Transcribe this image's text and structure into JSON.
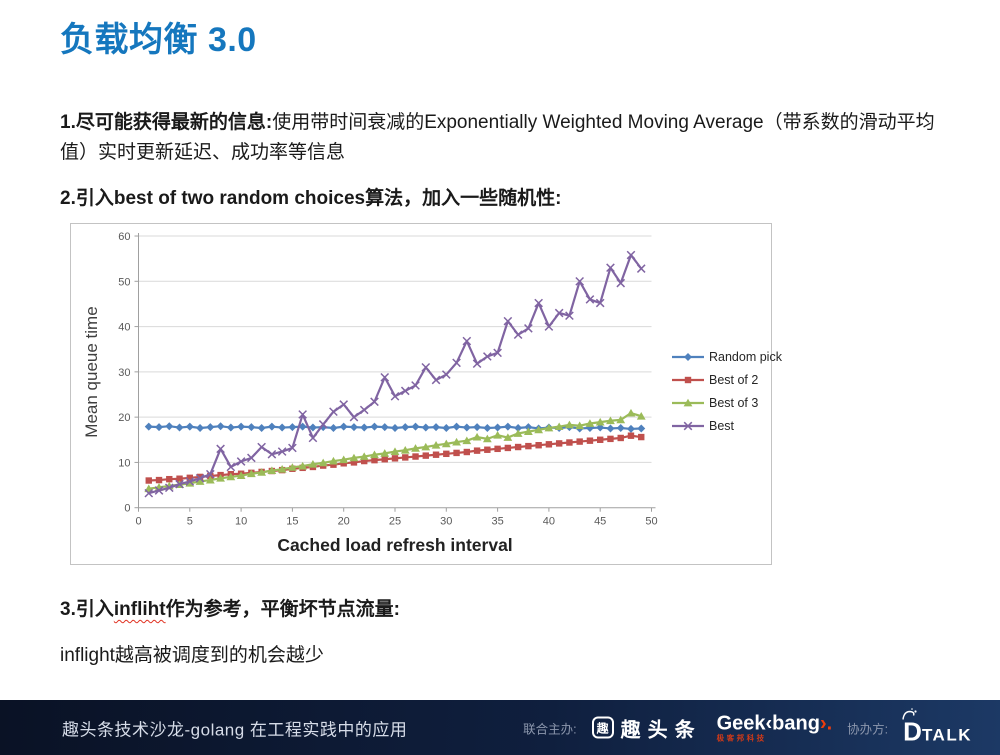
{
  "slide": {
    "title": "负载均衡 3.0",
    "p1_bold": "1.尽可能获得最新的信息:",
    "p1_rest": "使用带时间衰减的Exponentially Weighted Moving Average（带系数的滑动平均值）实时更新延迟、成功率等信息",
    "p2": "2.引入best of two random choices算法，加入一些随机性:",
    "p3_pre": "3.引入",
    "p3_word": "infliht",
    "p3_post": "作为参考，平衡坏节点流量:",
    "p4": "inflight越高被调度到的机会越少"
  },
  "chart_data": {
    "type": "line",
    "title": "",
    "xlabel": "Cached load refresh interval",
    "ylabel": "Mean queue time",
    "xlim": [
      0,
      50
    ],
    "ylim": [
      0,
      60
    ],
    "xticks": [
      0,
      5,
      10,
      15,
      20,
      25,
      30,
      35,
      40,
      45,
      50
    ],
    "yticks": [
      0,
      10,
      20,
      30,
      40,
      50,
      60
    ],
    "grid": "horizontal",
    "legend_position": "right-inside",
    "x": [
      1,
      2,
      3,
      4,
      5,
      6,
      7,
      8,
      9,
      10,
      11,
      12,
      13,
      14,
      15,
      16,
      17,
      18,
      19,
      20,
      21,
      22,
      23,
      24,
      25,
      26,
      27,
      28,
      29,
      30,
      31,
      32,
      33,
      34,
      35,
      36,
      37,
      38,
      39,
      40,
      41,
      42,
      43,
      44,
      45,
      46,
      47,
      48,
      49
    ],
    "series": [
      {
        "name": "Random pick",
        "color": "#4F81BD",
        "marker": "diamond",
        "values": [
          17.9,
          17.8,
          18.0,
          17.7,
          17.9,
          17.6,
          17.8,
          18.0,
          17.7,
          17.9,
          17.8,
          17.6,
          17.9,
          17.7,
          17.8,
          17.9,
          17.7,
          17.8,
          17.6,
          17.9,
          17.8,
          17.7,
          17.9,
          17.8,
          17.6,
          17.8,
          17.9,
          17.7,
          17.8,
          17.6,
          17.9,
          17.7,
          17.8,
          17.6,
          17.7,
          17.9,
          17.6,
          17.8,
          17.5,
          17.7,
          17.6,
          17.8,
          17.5,
          17.6,
          17.7,
          17.5,
          17.6,
          17.4,
          17.5
        ]
      },
      {
        "name": "Best of 2",
        "color": "#C0504D",
        "marker": "square",
        "values": [
          6.0,
          6.1,
          6.3,
          6.4,
          6.6,
          6.8,
          7.0,
          7.2,
          7.4,
          7.5,
          7.7,
          7.9,
          8.1,
          8.3,
          8.6,
          8.8,
          9.0,
          9.3,
          9.5,
          9.8,
          10.0,
          10.3,
          10.5,
          10.7,
          10.9,
          11.1,
          11.3,
          11.5,
          11.7,
          11.9,
          12.1,
          12.3,
          12.6,
          12.8,
          13.0,
          13.2,
          13.4,
          13.6,
          13.8,
          14.0,
          14.2,
          14.4,
          14.6,
          14.8,
          15.0,
          15.2,
          15.4,
          15.9,
          15.6
        ]
      },
      {
        "name": "Best of 3",
        "color": "#9BBB59",
        "marker": "triangle",
        "values": [
          4.2,
          4.5,
          4.8,
          5.1,
          5.4,
          5.8,
          6.1,
          6.5,
          6.8,
          7.1,
          7.5,
          7.8,
          8.2,
          8.5,
          8.9,
          9.2,
          9.6,
          9.9,
          10.3,
          10.6,
          11.0,
          11.3,
          11.7,
          12.0,
          12.4,
          12.7,
          13.1,
          13.4,
          13.8,
          14.1,
          14.5,
          14.8,
          15.6,
          15.2,
          16.0,
          15.5,
          16.4,
          16.8,
          17.2,
          17.6,
          17.9,
          18.3,
          18.1,
          18.6,
          18.9,
          19.2,
          19.4,
          20.9,
          20.2
        ]
      },
      {
        "name": "Best",
        "color": "#8064A2",
        "marker": "x",
        "values": [
          3.2,
          3.8,
          4.4,
          5.2,
          5.8,
          6.5,
          7.4,
          13.0,
          9.0,
          10.2,
          11.0,
          13.4,
          11.8,
          12.4,
          13.2,
          20.6,
          15.4,
          18.4,
          21.2,
          22.8,
          20.0,
          21.6,
          23.4,
          28.8,
          24.6,
          25.8,
          27.0,
          31.0,
          28.2,
          29.4,
          32.0,
          36.8,
          31.8,
          33.4,
          34.2,
          41.2,
          38.2,
          39.6,
          45.2,
          40.0,
          43.0,
          42.4,
          50.0,
          46.0,
          45.2,
          53.0,
          49.6,
          55.8,
          52.8
        ]
      }
    ]
  },
  "footer": {
    "title": "趣头条技术沙龙-golang 在工程实践中的应用",
    "cohost_label": "联合主办:",
    "qutoutiao_icon_char": "趣",
    "qutoutiao_name": "趣头条",
    "geekbang_main_1": "Geek",
    "geekbang_main_2": "‹bang",
    "geekbang_main_3": "›.",
    "geekbang_sub": "极客邦科技",
    "partner_label": "协办方:",
    "dtalk_d": "D",
    "dtalk_talk": "TALK"
  },
  "colors": {
    "title_blue": "#1577BE",
    "footer_bg_left": "#0A1225",
    "footer_bg_right": "#1C3965",
    "geekbang_orange": "#EF3D0C",
    "squiggle_red": "#E03020",
    "gridline": "#d9d9d9",
    "axis": "#a0a0a0"
  }
}
